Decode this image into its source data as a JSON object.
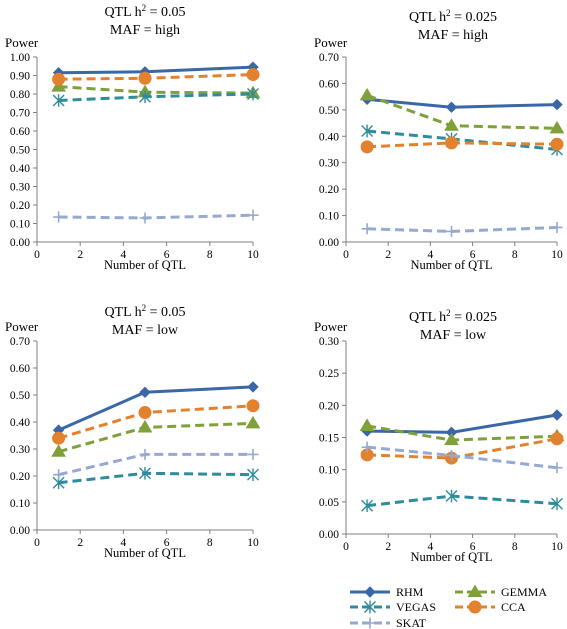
{
  "chart_data": [
    {
      "type": "line",
      "title_line1": "QTL h",
      "title_sup": "2",
      "title_rest": " = 0.05",
      "title_line2": "MAF = high",
      "ylabel": "Power",
      "xlabel": "Number of QTL",
      "xlim": [
        0,
        10
      ],
      "ylim": [
        0,
        1.0
      ],
      "x_ticks": [
        "0",
        "2",
        "4",
        "6",
        "8",
        "10"
      ],
      "y_ticks": [
        "0.00",
        "0.10",
        "0.20",
        "0.30",
        "0.40",
        "0.50",
        "0.60",
        "0.70",
        "0.80",
        "0.90",
        "1.00"
      ],
      "x": [
        1,
        5,
        10
      ],
      "series": [
        {
          "key": "rhm",
          "values": [
            0.915,
            0.92,
            0.945
          ]
        },
        {
          "key": "gemma",
          "values": [
            0.84,
            0.81,
            0.805
          ]
        },
        {
          "key": "vegas",
          "values": [
            0.765,
            0.785,
            0.8
          ]
        },
        {
          "key": "cca",
          "values": [
            0.88,
            0.885,
            0.905
          ]
        },
        {
          "key": "skat",
          "values": [
            0.135,
            0.13,
            0.145
          ]
        }
      ]
    },
    {
      "type": "line",
      "title_line1": "QTL h",
      "title_sup": "2",
      "title_rest": " = 0.025",
      "title_line2": "MAF = high",
      "ylabel": "Power",
      "xlabel": "Number of QTL",
      "xlim": [
        0,
        10
      ],
      "ylim": [
        0,
        0.7
      ],
      "x_ticks": [
        "0",
        "2",
        "4",
        "6",
        "8",
        "10"
      ],
      "y_ticks": [
        "0.00",
        "0.10",
        "0.20",
        "0.30",
        "0.40",
        "0.50",
        "0.60",
        "0.70"
      ],
      "x": [
        1,
        5,
        10
      ],
      "series": [
        {
          "key": "rhm",
          "values": [
            0.54,
            0.51,
            0.52
          ]
        },
        {
          "key": "gemma",
          "values": [
            0.555,
            0.44,
            0.43
          ]
        },
        {
          "key": "vegas",
          "values": [
            0.42,
            0.39,
            0.35
          ]
        },
        {
          "key": "cca",
          "values": [
            0.36,
            0.375,
            0.37
          ]
        },
        {
          "key": "skat",
          "values": [
            0.05,
            0.04,
            0.055
          ]
        }
      ]
    },
    {
      "type": "line",
      "title_line1": "QTL h",
      "title_sup": "2",
      "title_rest": " = 0.05",
      "title_line2": "MAF = low",
      "ylabel": "Power",
      "xlabel": "Number of QTL",
      "xlim": [
        0,
        10
      ],
      "ylim": [
        0,
        0.7
      ],
      "x_ticks": [
        "0",
        "2",
        "4",
        "6",
        "8",
        "10"
      ],
      "y_ticks": [
        "0.00",
        "0.10",
        "0.20",
        "0.30",
        "0.40",
        "0.50",
        "0.60",
        "0.70"
      ],
      "x": [
        1,
        5,
        10
      ],
      "series": [
        {
          "key": "rhm",
          "values": [
            0.37,
            0.51,
            0.53
          ]
        },
        {
          "key": "gemma",
          "values": [
            0.29,
            0.38,
            0.395
          ]
        },
        {
          "key": "vegas",
          "values": [
            0.175,
            0.21,
            0.205
          ]
        },
        {
          "key": "cca",
          "values": [
            0.34,
            0.435,
            0.46
          ]
        },
        {
          "key": "skat",
          "values": [
            0.205,
            0.28,
            0.28
          ]
        }
      ]
    },
    {
      "type": "line",
      "title_line1": "QTL h",
      "title_sup": "2",
      "title_rest": " = 0.025",
      "title_line2": "MAF = low",
      "ylabel": "Power",
      "xlabel": "Number of QTL",
      "xlim": [
        0,
        10
      ],
      "ylim": [
        0,
        0.3
      ],
      "x_ticks": [
        "0",
        "2",
        "4",
        "6",
        "8",
        "10"
      ],
      "y_ticks": [
        "0.00",
        "0.05",
        "0.10",
        "0.15",
        "0.20",
        "0.25",
        "0.30"
      ],
      "x": [
        1,
        5,
        10
      ],
      "series": [
        {
          "key": "rhm",
          "values": [
            0.16,
            0.158,
            0.185
          ]
        },
        {
          "key": "gemma",
          "values": [
            0.168,
            0.146,
            0.152
          ]
        },
        {
          "key": "vegas",
          "values": [
            0.044,
            0.059,
            0.047
          ]
        },
        {
          "key": "cca",
          "values": [
            0.123,
            0.118,
            0.148
          ]
        },
        {
          "key": "skat",
          "values": [
            0.135,
            0.122,
            0.103
          ]
        }
      ]
    }
  ],
  "legend": {
    "placement": "bottom-right",
    "items": [
      {
        "key": "rhm",
        "label": "RHM",
        "color": "#3a67a6",
        "marker": "diamond",
        "dash": "solid"
      },
      {
        "key": "gemma",
        "label": "GEMMA",
        "color": "#7fa03a",
        "marker": "triangle",
        "dash": "dashed"
      },
      {
        "key": "vegas",
        "label": "VEGAS",
        "color": "#2f8c9c",
        "marker": "asterisk",
        "dash": "dashed"
      },
      {
        "key": "cca",
        "label": "CCA",
        "color": "#e2812e",
        "marker": "circle",
        "dash": "dashed"
      },
      {
        "key": "skat",
        "label": "SKAT",
        "color": "#96a9d0",
        "marker": "plus",
        "dash": "dashed"
      }
    ]
  }
}
